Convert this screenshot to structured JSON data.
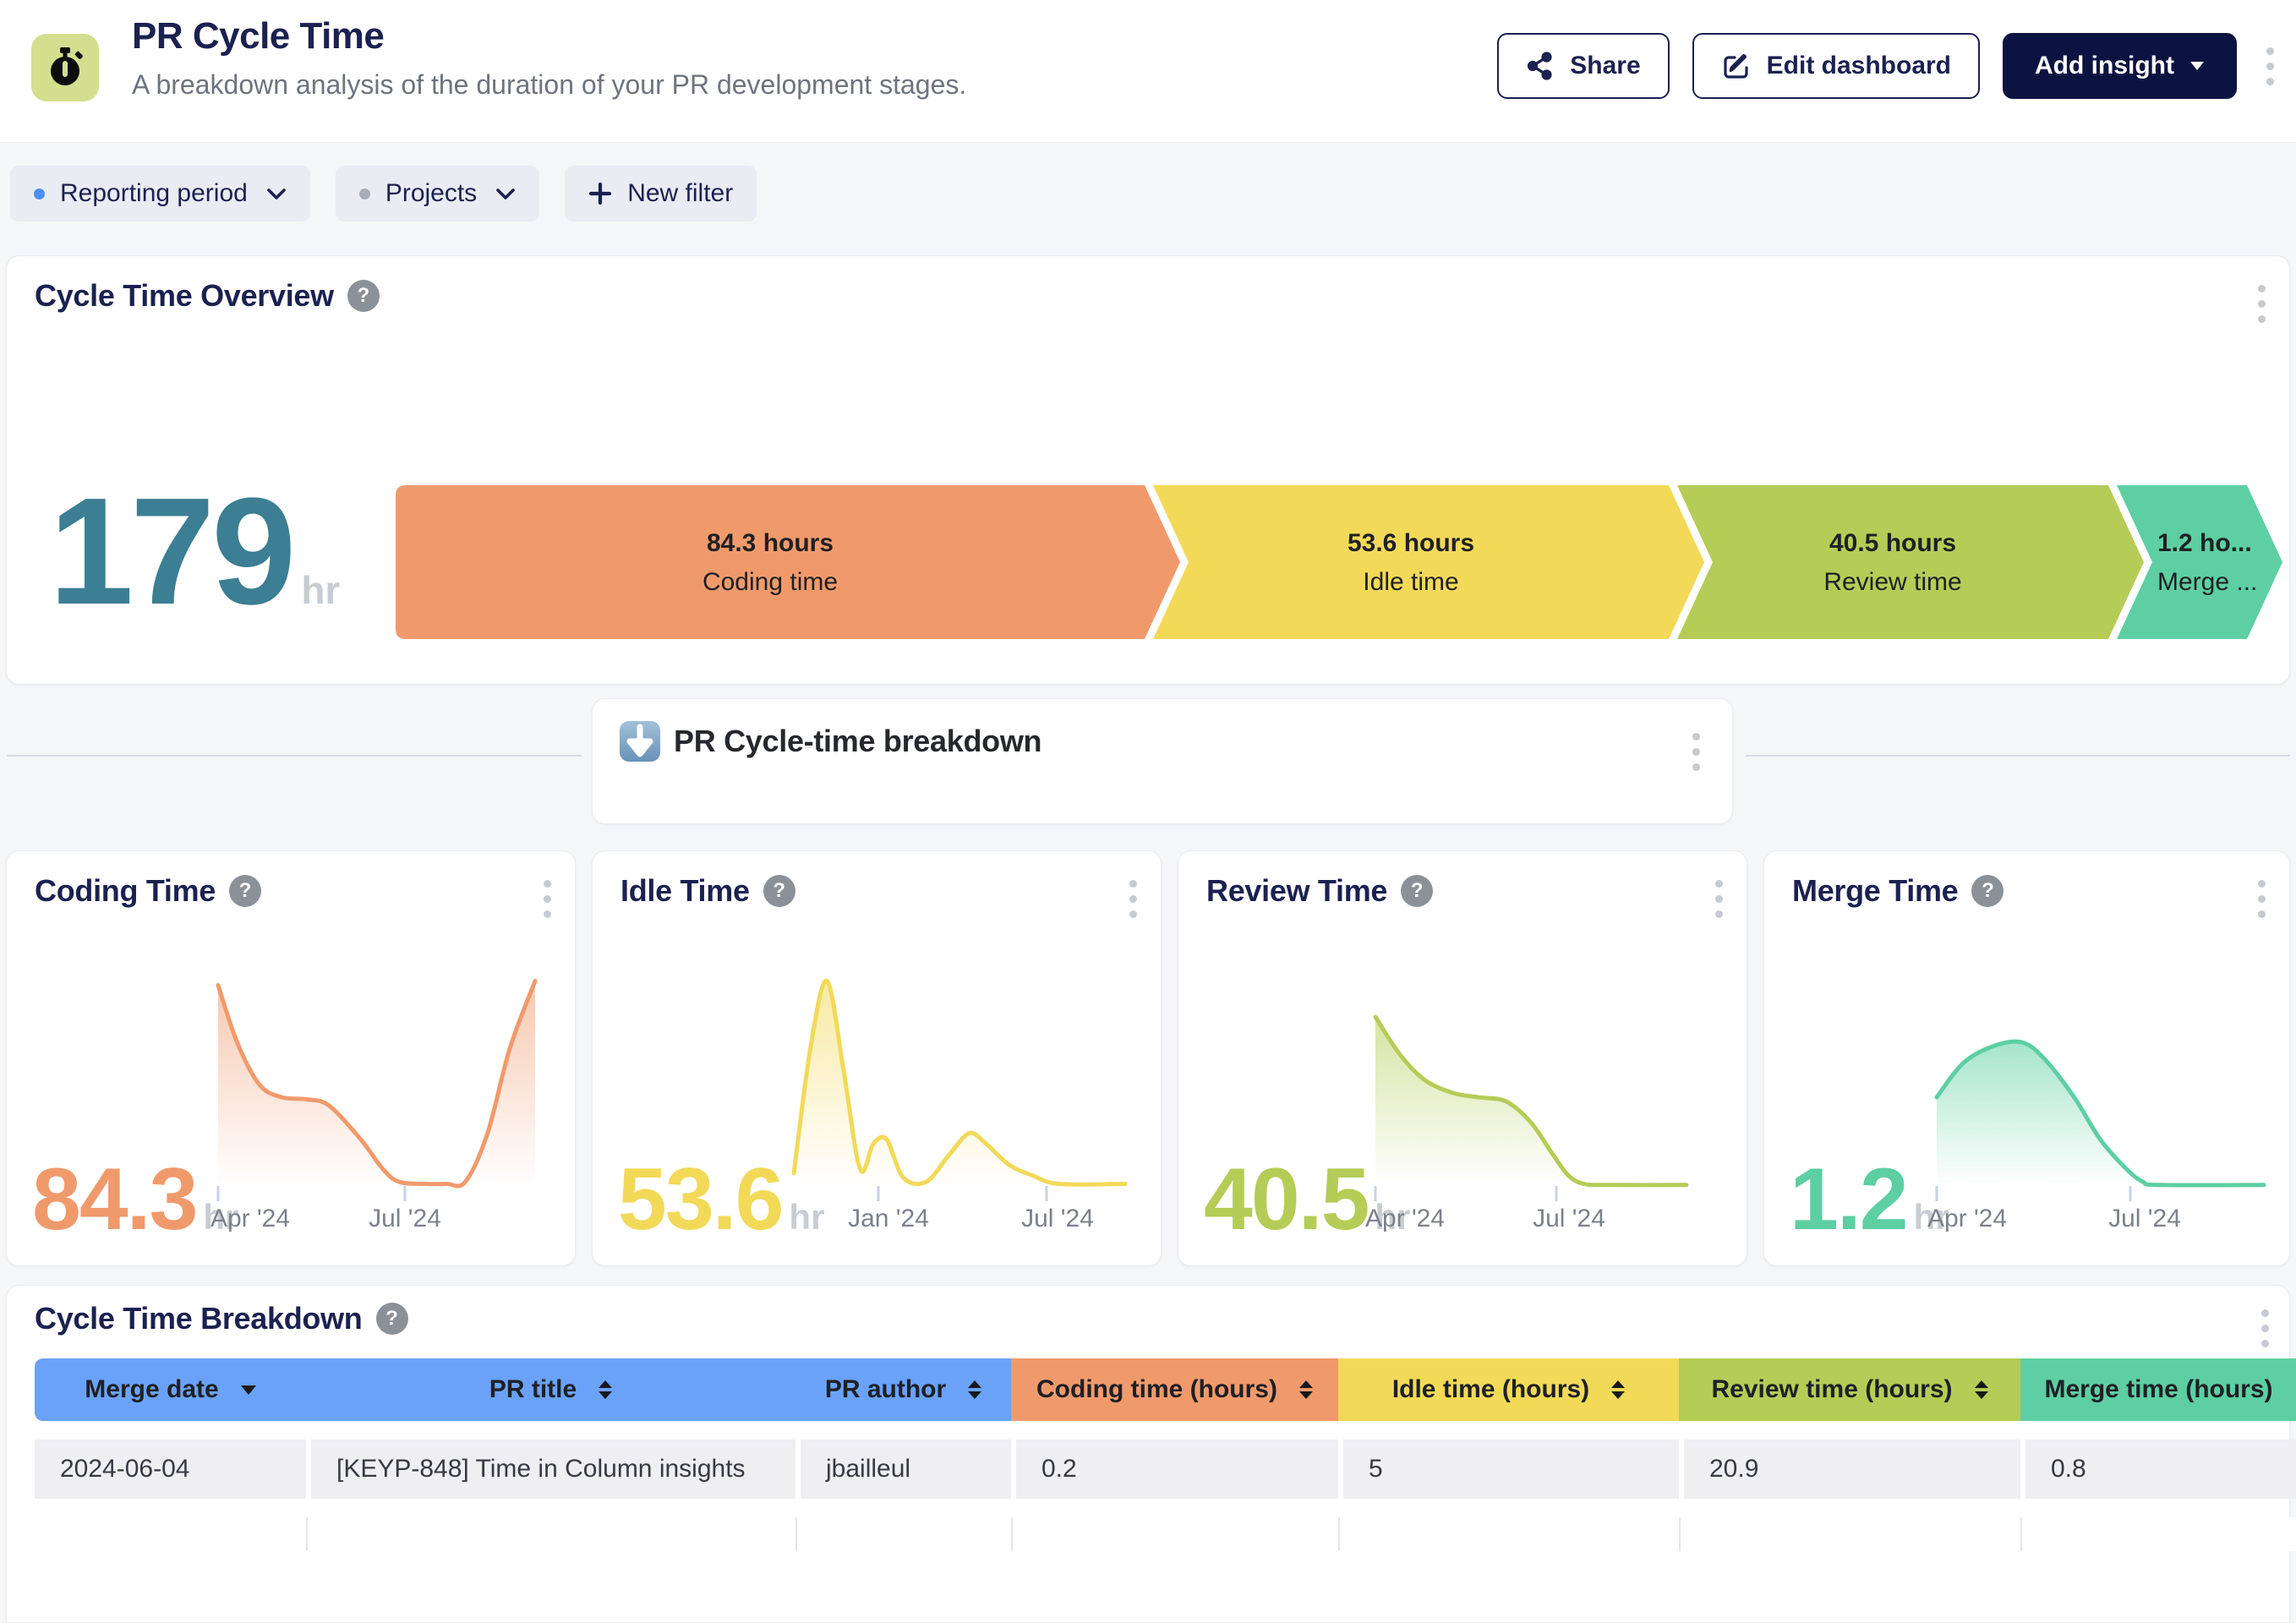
{
  "header": {
    "title": "PR Cycle Time",
    "subtitle": "A breakdown analysis of the duration of your PR development stages.",
    "actions": {
      "share": "Share",
      "edit": "Edit dashboard",
      "add_insight": "Add insight"
    }
  },
  "filters": {
    "items": [
      {
        "label": "Reporting period",
        "dot_color": "#4a90f4",
        "has_chevron": true
      },
      {
        "label": "Projects",
        "dot_color": "#a8aeb8",
        "has_chevron": true
      },
      {
        "label": "New filter",
        "dot_color": "",
        "has_chevron": false
      }
    ]
  },
  "overview": {
    "title": "Cycle Time Overview",
    "total_value": "179",
    "total_unit": "hr",
    "stages": [
      {
        "value_label": "84.3 hours",
        "name": "Coding time",
        "color": "#f09a6c"
      },
      {
        "value_label": "53.6 hours",
        "name": "Idle time",
        "color": "#f2d958"
      },
      {
        "value_label": "40.5 hours",
        "name": "Review time",
        "color": "#b5cc56"
      },
      {
        "value_label": "1.2 ho...",
        "name": "Merge ...",
        "color": "#5dcfa3"
      }
    ]
  },
  "breakdown_banner": {
    "title": "PR Cycle-time breakdown"
  },
  "metric_cards": [
    {
      "title": "Coding Time",
      "value": "84.3",
      "unit": "hr",
      "color": "#f09a6c"
    },
    {
      "title": "Idle Time",
      "value": "53.6",
      "unit": "hr",
      "color": "#f2d958"
    },
    {
      "title": "Review Time",
      "value": "40.5",
      "unit": "hr",
      "color": "#b5cc56"
    },
    {
      "title": "Merge Time",
      "value": "1.2",
      "unit": "hr",
      "color": "#5dcfa3"
    }
  ],
  "table": {
    "title": "Cycle Time Breakdown",
    "columns": [
      {
        "label": "Merge date",
        "color": "#6aa2f8",
        "sort": "desc"
      },
      {
        "label": "PR title",
        "color": "#6aa2f8",
        "sort": "both"
      },
      {
        "label": "PR author",
        "color": "#6aa2f8",
        "sort": "both"
      },
      {
        "label": "Coding time (hours)",
        "color": "#f09a6c",
        "sort": "both"
      },
      {
        "label": "Idle time (hours)",
        "color": "#f2d958",
        "sort": "both"
      },
      {
        "label": "Review time (hours)",
        "color": "#b5cc56",
        "sort": "both"
      },
      {
        "label": "Merge time (hours)",
        "color": "#5dcfa3",
        "sort": "none"
      }
    ],
    "rows": [
      [
        "2024-06-04",
        "[KEYP-848] Time in Column insights",
        "jbailleul",
        "0.2",
        "5",
        "20.9",
        "0.8"
      ]
    ]
  },
  "chart_data": [
    {
      "type": "funnel",
      "title": "Cycle Time Overview",
      "total_hours": 179,
      "unit": "hours",
      "stages": [
        {
          "label": "Coding time",
          "hours": 84.3
        },
        {
          "label": "Idle time",
          "hours": 53.6
        },
        {
          "label": "Review time",
          "hours": 40.5
        },
        {
          "label": "Merge time",
          "hours": 1.2
        }
      ]
    },
    {
      "type": "area",
      "title": "Coding Time",
      "current_hours": 84.3,
      "ylabel": "hours",
      "x_tick_labels": [
        "Apr '24",
        "Jul '24"
      ],
      "points_norm": [
        [
          0,
          0.95
        ],
        [
          0.06,
          0.68
        ],
        [
          0.13,
          0.48
        ],
        [
          0.2,
          0.42
        ],
        [
          0.28,
          0.41
        ],
        [
          0.35,
          0.38
        ],
        [
          0.45,
          0.22
        ],
        [
          0.52,
          0.08
        ],
        [
          0.57,
          0.02
        ],
        [
          0.65,
          0.01
        ],
        [
          0.72,
          0.01
        ],
        [
          0.78,
          0.02
        ],
        [
          0.85,
          0.25
        ],
        [
          0.92,
          0.65
        ],
        [
          1,
          0.97
        ]
      ]
    },
    {
      "type": "area",
      "title": "Idle Time",
      "current_hours": 53.6,
      "ylabel": "hours",
      "x_tick_labels": [
        "Jan '24",
        "Jul '24"
      ],
      "points_norm": [
        [
          0,
          0.06
        ],
        [
          0.05,
          0.65
        ],
        [
          0.1,
          0.97
        ],
        [
          0.15,
          0.55
        ],
        [
          0.2,
          0.08
        ],
        [
          0.24,
          0.2
        ],
        [
          0.28,
          0.22
        ],
        [
          0.33,
          0.04
        ],
        [
          0.4,
          0.02
        ],
        [
          0.47,
          0.15
        ],
        [
          0.53,
          0.25
        ],
        [
          0.58,
          0.2
        ],
        [
          0.65,
          0.1
        ],
        [
          0.72,
          0.05
        ],
        [
          0.8,
          0.01
        ],
        [
          1,
          0.01
        ]
      ]
    },
    {
      "type": "area",
      "title": "Review Time",
      "current_hours": 40.5,
      "ylabel": "hours",
      "x_tick_labels": [
        "Apr '24",
        "Jul '24"
      ],
      "points_norm": [
        [
          0,
          0.8
        ],
        [
          0.08,
          0.62
        ],
        [
          0.16,
          0.5
        ],
        [
          0.25,
          0.44
        ],
        [
          0.33,
          0.42
        ],
        [
          0.42,
          0.4
        ],
        [
          0.5,
          0.3
        ],
        [
          0.57,
          0.15
        ],
        [
          0.62,
          0.05
        ],
        [
          0.67,
          0.01
        ],
        [
          0.75,
          0.005
        ],
        [
          1,
          0.005
        ]
      ]
    },
    {
      "type": "area",
      "title": "Merge Time",
      "current_hours": 1.2,
      "ylabel": "hours",
      "x_tick_labels": [
        "Apr '24",
        "Jul '24"
      ],
      "points_norm": [
        [
          0,
          0.42
        ],
        [
          0.08,
          0.58
        ],
        [
          0.17,
          0.66
        ],
        [
          0.26,
          0.68
        ],
        [
          0.33,
          0.6
        ],
        [
          0.42,
          0.42
        ],
        [
          0.5,
          0.22
        ],
        [
          0.58,
          0.08
        ],
        [
          0.63,
          0.02
        ],
        [
          0.68,
          0.005
        ],
        [
          1,
          0.005
        ]
      ]
    }
  ],
  "colors": {
    "navy": "#1b2150",
    "total_teal": "#3c7e93",
    "unit_gray": "#c8cdd3",
    "table_header_blue": "#6aa2f8",
    "page_bg": "#f5f6f8"
  }
}
